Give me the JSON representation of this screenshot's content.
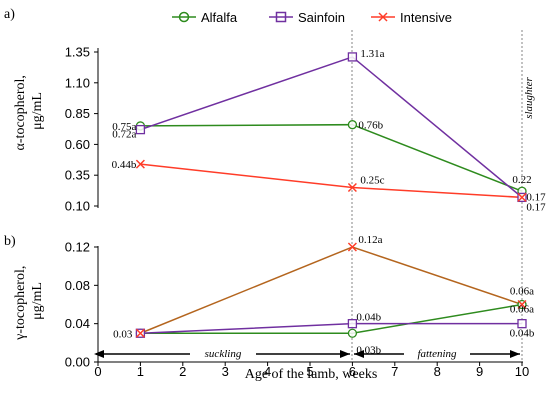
{
  "colors": {
    "alfalfa": "#2e8b1e",
    "sainfoin": "#7030a0",
    "intensive": "#ff3c28",
    "gamma_line": "#b4651e",
    "phase_line": "#666666"
  },
  "panels": {
    "a_label": "a)",
    "b_label": "b)"
  },
  "phases": {
    "suckling": "suckling",
    "fattening": "fattening",
    "slaughter": "slaughter"
  },
  "chart_data": [
    {
      "type": "line",
      "panel": "a)",
      "ylabel": "α-tocopherol, μg/mL",
      "ylim": [
        0.1,
        1.35
      ],
      "yticks": [
        "0.10",
        "0.35",
        "0.60",
        "0.85",
        "1.10",
        "1.35"
      ],
      "x": [
        1,
        6,
        10
      ],
      "legend_position": "top-center",
      "series": [
        {
          "name": "Alfalfa",
          "marker": "circle",
          "values": [
            0.75,
            0.76,
            0.22
          ],
          "labels": [
            "0.75a",
            "0.76b",
            "0.22"
          ]
        },
        {
          "name": "Sainfoin",
          "marker": "square",
          "values": [
            0.72,
            1.31,
            0.17
          ],
          "labels": [
            "0.72a",
            "1.31a",
            "0.17"
          ]
        },
        {
          "name": "Intensive",
          "marker": "x",
          "values": [
            0.44,
            0.25,
            0.17
          ],
          "labels": [
            "0.44b",
            "0.25c",
            "0.17"
          ]
        }
      ]
    },
    {
      "type": "line",
      "panel": "b)",
      "ylabel": "γ-tocopherol, μg/mL",
      "xlabel": "Age of the lamb, weeks",
      "ylim": [
        0.0,
        0.12
      ],
      "yticks": [
        "0.00",
        "0.04",
        "0.08",
        "0.12"
      ],
      "xlim": [
        0,
        10
      ],
      "xticks": [
        "0",
        "1",
        "2",
        "3",
        "4",
        "5",
        "6",
        "7",
        "8",
        "9",
        "10"
      ],
      "x": [
        1,
        6,
        10
      ],
      "series": [
        {
          "name": "Alfalfa",
          "marker": "circle",
          "values": [
            0.03,
            0.03,
            0.06
          ],
          "labels": [
            "",
            "0.03b",
            "0.06a"
          ]
        },
        {
          "name": "Sainfoin",
          "marker": "square",
          "values": [
            0.03,
            0.04,
            0.04
          ],
          "labels": [
            "",
            "0.04b",
            "0.04b"
          ]
        },
        {
          "name": "Intensive",
          "marker": "x",
          "values": [
            0.03,
            0.12,
            0.06
          ],
          "labels": [
            "0.03",
            "0.12a",
            "0.06a"
          ]
        }
      ]
    }
  ]
}
